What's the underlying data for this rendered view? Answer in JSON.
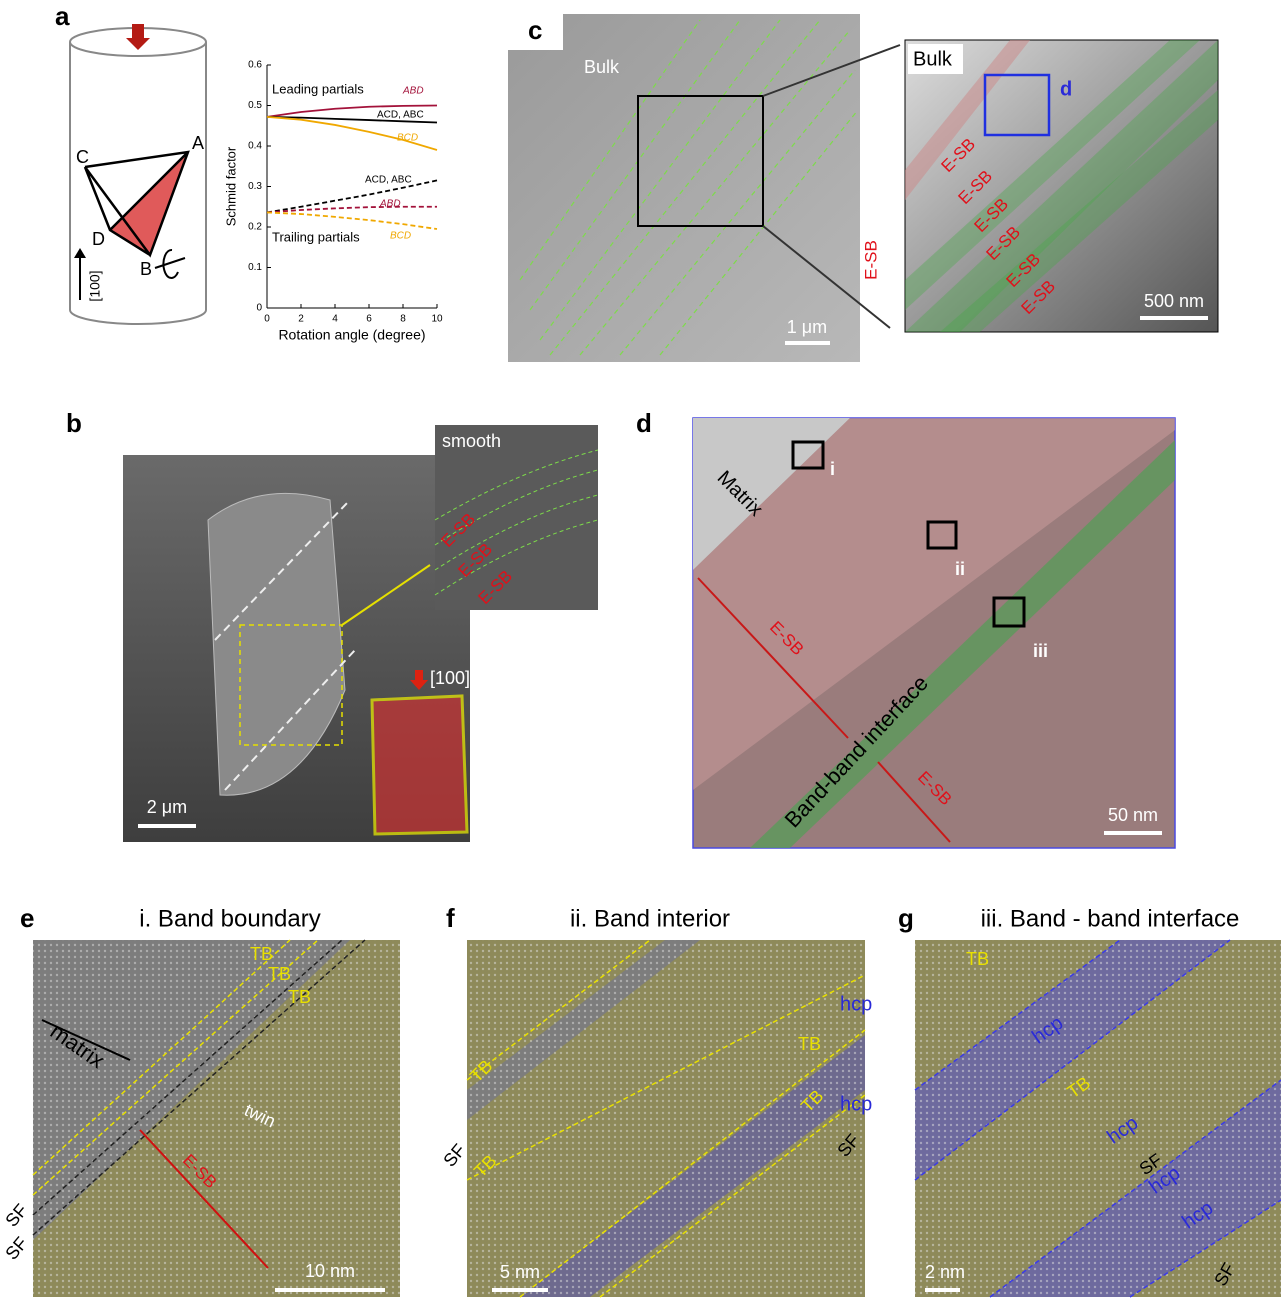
{
  "chart_data": {
    "type": "line",
    "xlabel": "Rotation angle (degree)",
    "ylabel": "Schmid factor",
    "xlim": [
      0,
      10
    ],
    "xticks": [
      0,
      2,
      4,
      6,
      8,
      10
    ],
    "ylim": [
      0,
      0.6
    ],
    "yticks": [
      0,
      0.1,
      0.2,
      0.3,
      0.4,
      0.5,
      0.6
    ],
    "annotations": [
      "Leading partials",
      "Trailing partials"
    ],
    "x": [
      0,
      2,
      4,
      6,
      8,
      10
    ],
    "series": [
      {
        "name": "ABD",
        "color": "#a3123a",
        "dashed": false,
        "values": [
          0.472,
          0.484,
          0.492,
          0.497,
          0.499,
          0.5
        ]
      },
      {
        "name": "ACD, ABC",
        "color": "#000000",
        "dashed": false,
        "values": [
          0.472,
          0.47,
          0.467,
          0.464,
          0.461,
          0.458
        ]
      },
      {
        "name": "BCD",
        "color": "#f0a800",
        "dashed": false,
        "values": [
          0.472,
          0.465,
          0.452,
          0.435,
          0.415,
          0.39
        ]
      },
      {
        "name": "ACD, ABC",
        "color": "#000000",
        "dashed": true,
        "values": [
          0.236,
          0.25,
          0.265,
          0.28,
          0.297,
          0.315
        ]
      },
      {
        "name": "ABD",
        "color": "#a3123a",
        "dashed": true,
        "values": [
          0.236,
          0.242,
          0.246,
          0.249,
          0.25,
          0.25
        ]
      },
      {
        "name": "BCD",
        "color": "#f0a800",
        "dashed": true,
        "values": [
          0.236,
          0.232,
          0.225,
          0.217,
          0.207,
          0.195
        ]
      }
    ]
  },
  "panels": {
    "a": {
      "label": "a",
      "texts": [
        "A",
        "B",
        "C",
        "D",
        "[100]"
      ]
    },
    "b": {
      "label": "b",
      "texts": [
        "smooth",
        "E-SB",
        "E-SB",
        "E-SB",
        "[100]",
        "2 μm"
      ]
    },
    "c": {
      "label": "c",
      "texts": [
        "Bulk",
        "1 μm",
        "Bulk",
        "d",
        "E-SB",
        "E-SB",
        "E-SB",
        "E-SB",
        "E-SB",
        "E-SB",
        "E-SB",
        "500 nm"
      ]
    },
    "d": {
      "label": "d",
      "texts": [
        "Matrix",
        "i",
        "ii",
        "iii",
        "E-SB",
        "Band-band interface",
        "E-SB",
        "50 nm"
      ]
    },
    "e": {
      "label": "e",
      "title": "i. Band boundary",
      "texts": [
        "TB",
        "TB",
        "TB",
        "matrix",
        "twin",
        "E-SB",
        "SF",
        "SF",
        "10 nm"
      ]
    },
    "f": {
      "label": "f",
      "title": "ii. Band interior",
      "texts": [
        "TB",
        "hcp",
        "TB",
        "hcp",
        "SF",
        "SF",
        "TB",
        "TB",
        "5 nm"
      ]
    },
    "g": {
      "label": "g",
      "title": "iii. Band - band interface",
      "texts": [
        "TB",
        "hcp",
        "TB",
        "hcp",
        "SF",
        "hcp",
        "hcp",
        "SF",
        "2 nm"
      ]
    }
  }
}
